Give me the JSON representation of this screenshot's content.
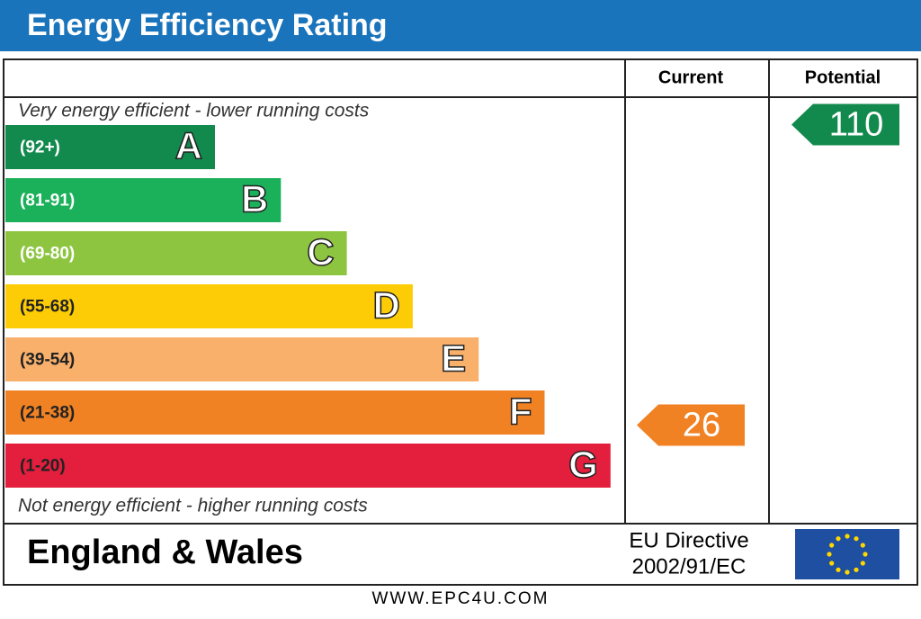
{
  "header": {
    "title": "Energy Efficiency Rating"
  },
  "columns": {
    "current": "Current",
    "potential": "Potential"
  },
  "top_note": "Very energy efficient - lower running costs",
  "bottom_note": "Not energy efficient - higher running costs",
  "bands": [
    {
      "range": "(92+)",
      "letter": "A",
      "color": "#138a4d"
    },
    {
      "range": "(81-91)",
      "letter": "B",
      "color": "#1bb05a"
    },
    {
      "range": "(69-80)",
      "letter": "C",
      "color": "#8dc540"
    },
    {
      "range": "(55-68)",
      "letter": "D",
      "color": "#fdcc06"
    },
    {
      "range": "(39-54)",
      "letter": "E",
      "color": "#f8b06b"
    },
    {
      "range": "(21-38)",
      "letter": "F",
      "color": "#f08224"
    },
    {
      "range": "(1-20)",
      "letter": "G",
      "color": "#e41e3d"
    }
  ],
  "current": {
    "value": 26,
    "color": "#f08224"
  },
  "potential": {
    "value": 110,
    "color": "#138a4d"
  },
  "footer": {
    "region": "England & Wales",
    "directive": [
      "EU Directive",
      "2002/91/EC"
    ]
  },
  "website": "WWW.EPC4U.COM"
}
